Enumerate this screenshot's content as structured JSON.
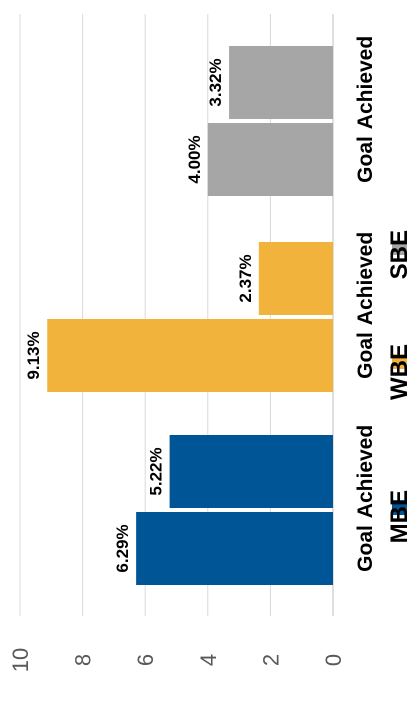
{
  "chart_data": {
    "type": "bar",
    "orientation": "horizontal",
    "groups": [
      "MBE",
      "WBE",
      "SBE"
    ],
    "categories": [
      "Goal",
      "Achieved"
    ],
    "series": [
      {
        "name": "MBE",
        "color": "#005596",
        "values": [
          6.29,
          5.22
        ],
        "labels": [
          "6.29%",
          "5.22%"
        ]
      },
      {
        "name": "WBE",
        "color": "#F2B33C",
        "values": [
          9.13,
          2.37
        ],
        "labels": [
          "9.13%",
          "2.37%"
        ]
      },
      {
        "name": "SBE",
        "color": "#A6A6A6",
        "values": [
          4.0,
          3.32
        ],
        "labels": [
          "4.00%",
          "3.32%"
        ]
      }
    ],
    "ticks": [
      "0",
      "2",
      "4",
      "6",
      "8",
      "10"
    ],
    "xlim": [
      0,
      10
    ],
    "grid": true,
    "legend": "right"
  }
}
